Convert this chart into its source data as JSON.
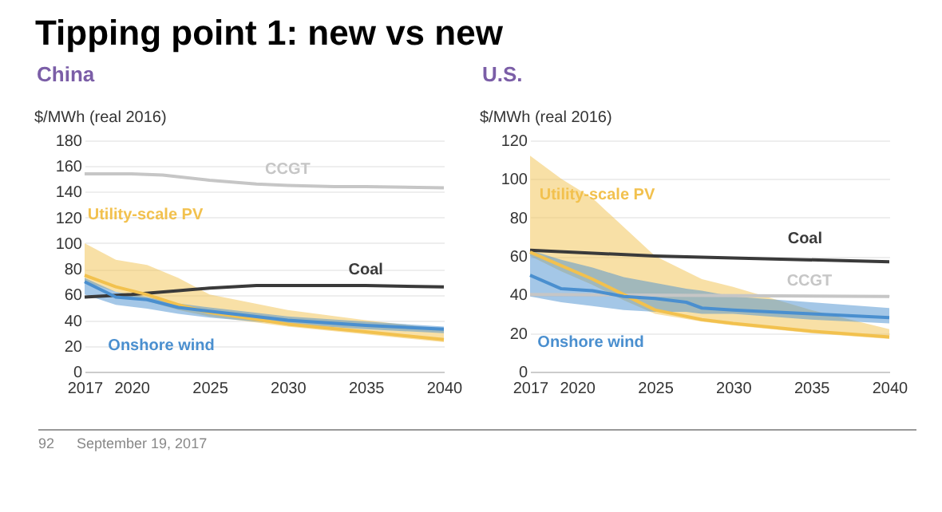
{
  "chart_data": [
    {
      "type": "line",
      "title": "Tipping point 1: new vs new",
      "subtitle": "China",
      "ylabel": "$/MWh (real 2016)",
      "xlim": [
        2017,
        2040
      ],
      "xticks": [
        2017,
        2020,
        2025,
        2030,
        2035,
        2040
      ],
      "ylim": [
        0,
        180
      ],
      "yticks": [
        0,
        20,
        40,
        60,
        80,
        100,
        120,
        140,
        160,
        180
      ],
      "grid": "y",
      "legend": false,
      "annotations": [
        "92",
        "September 19, 2017"
      ],
      "series": [
        {
          "name": "CCGT",
          "color": "#c6c6c6",
          "x": [
            2017,
            2020,
            2022,
            2025,
            2028,
            2030,
            2033,
            2035,
            2040
          ],
          "values": [
            154,
            154,
            153,
            149,
            146,
            145,
            144,
            144,
            143
          ]
        },
        {
          "name": "Coal",
          "color": "#3a3a3a",
          "x": [
            2017,
            2020,
            2023,
            2025,
            2028,
            2030,
            2035,
            2040
          ],
          "values": [
            58,
            60,
            63,
            65,
            67,
            67,
            67,
            66
          ]
        },
        {
          "name": "Utility-scale PV",
          "color": "#f2c14e",
          "x": [
            2017,
            2019,
            2021,
            2023,
            2025,
            2030,
            2035,
            2040
          ],
          "values": [
            75,
            66,
            60,
            52,
            46,
            37,
            31,
            25
          ],
          "lower": [
            70,
            62,
            55,
            48,
            43,
            35,
            29,
            23
          ],
          "upper": [
            100,
            87,
            83,
            73,
            60,
            48,
            40,
            33
          ]
        },
        {
          "name": "Onshore wind",
          "color": "#4a8fcf",
          "x": [
            2017,
            2019,
            2021,
            2023,
            2025,
            2030,
            2035,
            2040
          ],
          "values": [
            70,
            58,
            56,
            50,
            47,
            40,
            36,
            33
          ],
          "lower": [
            60,
            52,
            49,
            45,
            42,
            37,
            33,
            30
          ],
          "upper": [
            73,
            62,
            58,
            53,
            50,
            43,
            39,
            35
          ]
        }
      ]
    },
    {
      "type": "line",
      "title": "U.S.",
      "ylabel": "$/MWh (real 2016)",
      "xlim": [
        2017,
        2040
      ],
      "xticks": [
        2017,
        2020,
        2025,
        2030,
        2035,
        2040
      ],
      "ylim": [
        0,
        120
      ],
      "yticks": [
        0,
        20,
        40,
        60,
        80,
        100,
        120
      ],
      "grid": "y",
      "legend": false,
      "series": [
        {
          "name": "CCGT",
          "color": "#c6c6c6",
          "x": [
            2017,
            2040
          ],
          "values": [
            40,
            39
          ]
        },
        {
          "name": "Coal",
          "color": "#3a3a3a",
          "x": [
            2017,
            2025,
            2030,
            2040
          ],
          "values": [
            63,
            60,
            59,
            57
          ]
        },
        {
          "name": "Utility-scale PV",
          "color": "#f2c14e",
          "x": [
            2017,
            2019,
            2021,
            2023,
            2025,
            2028,
            2030,
            2035,
            2040
          ],
          "values": [
            62,
            55,
            48,
            40,
            32,
            27,
            25,
            21,
            18
          ],
          "lower": [
            60,
            52,
            45,
            37,
            30,
            26,
            24,
            20,
            17
          ],
          "upper": [
            112,
            100,
            90,
            75,
            60,
            48,
            44,
            32,
            22
          ]
        },
        {
          "name": "Onshore wind",
          "color": "#4a8fcf",
          "x": [
            2017,
            2019,
            2021,
            2023,
            2025,
            2027,
            2028,
            2030,
            2035,
            2040
          ],
          "values": [
            50,
            43,
            42,
            39,
            38,
            36,
            33,
            32,
            30,
            28
          ],
          "lower": [
            39,
            36,
            34,
            32,
            31,
            31,
            30,
            30,
            27,
            25
          ],
          "upper": [
            63,
            58,
            54,
            49,
            46,
            43,
            42,
            39,
            36,
            33
          ]
        }
      ]
    }
  ]
}
